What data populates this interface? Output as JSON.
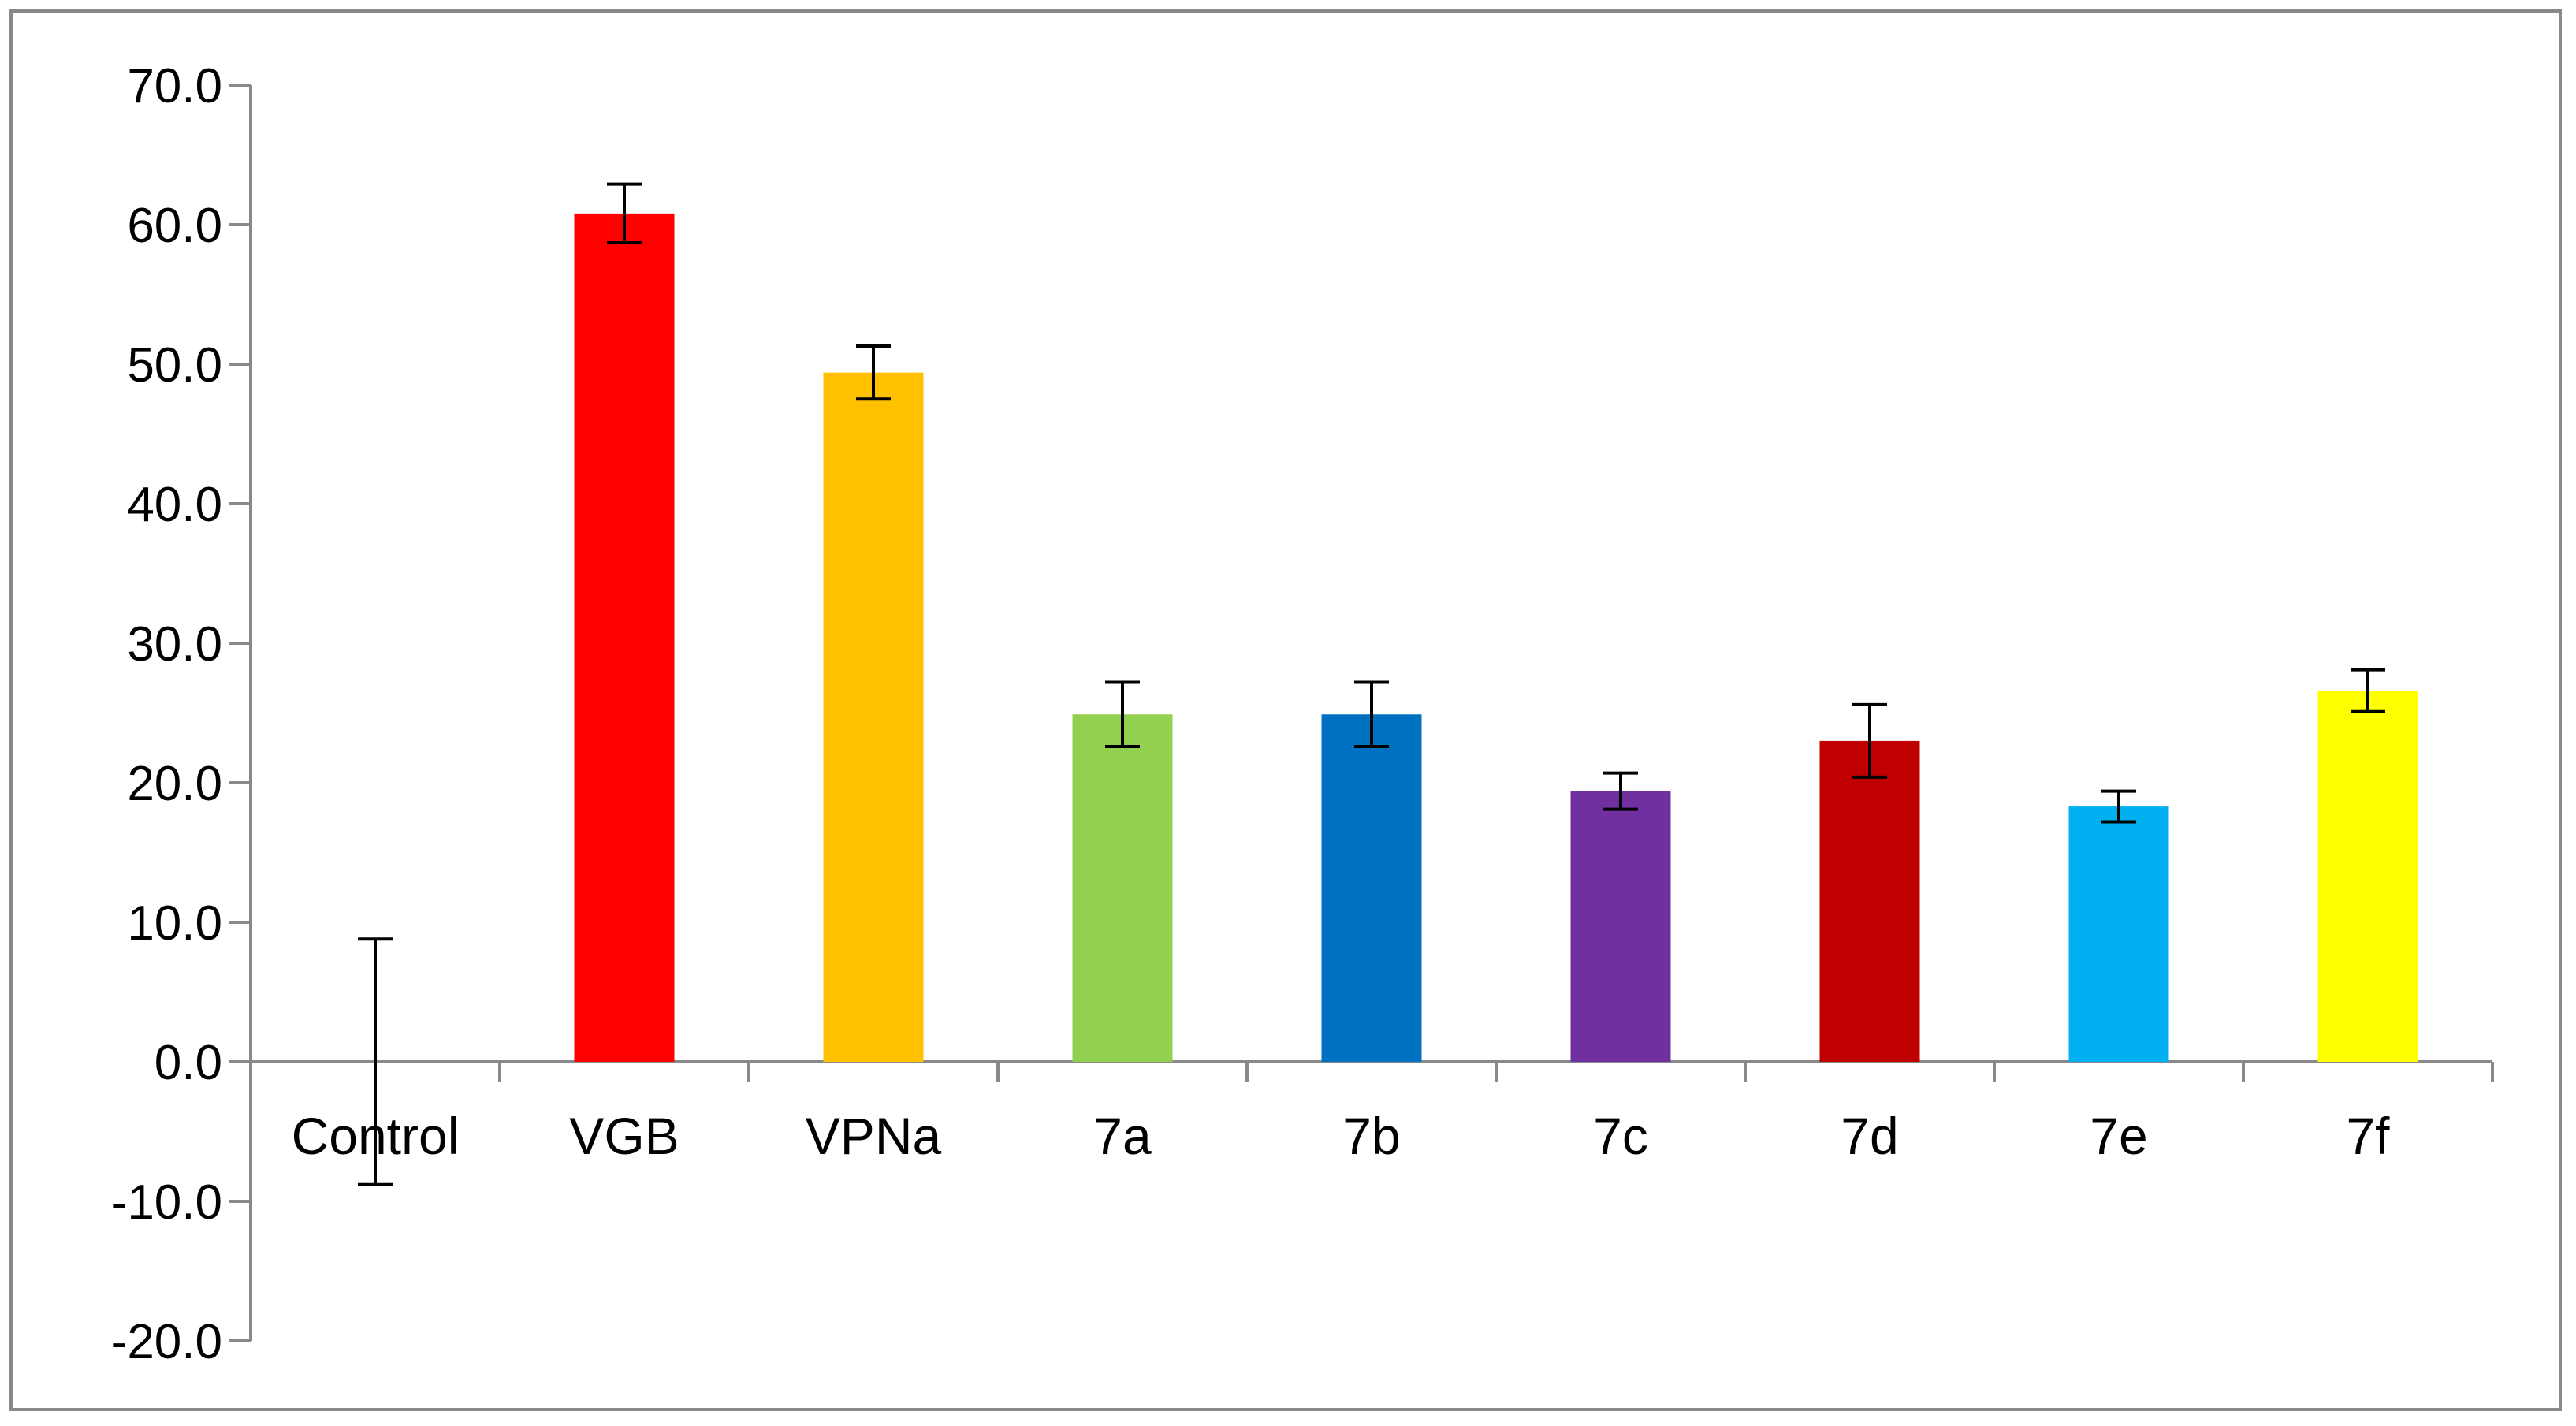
{
  "chart_data": {
    "type": "bar",
    "title": "",
    "xlabel": "",
    "ylabel": "",
    "ylim": [
      -20,
      70
    ],
    "y_ticks": [
      70,
      60,
      50,
      40,
      30,
      20,
      10,
      0,
      -10,
      -20
    ],
    "y_tick_labels": [
      "70.0",
      "60.0",
      "50.0",
      "40.0",
      "30.0",
      "20.0",
      "10.0",
      "0.0",
      "-10.0",
      "-20.0"
    ],
    "categories": [
      "Control",
      "VGB",
      "VPNa",
      "7a",
      "7b",
      "7c",
      "7d",
      "7e",
      "7f"
    ],
    "values": [
      0.0,
      60.8,
      49.4,
      24.9,
      24.9,
      19.4,
      23.0,
      18.3,
      26.6
    ],
    "error": [
      8.8,
      2.1,
      1.9,
      2.3,
      2.3,
      1.3,
      2.6,
      1.1,
      1.5
    ],
    "colors": [
      "#FFFFFF",
      "#FF0000",
      "#FFC000",
      "#92D050",
      "#0070C0",
      "#7030A0",
      "#C00000",
      "#00B0F0",
      "#FFFF00"
    ],
    "axis_color": "#898989",
    "grid": false,
    "legend": "none"
  }
}
